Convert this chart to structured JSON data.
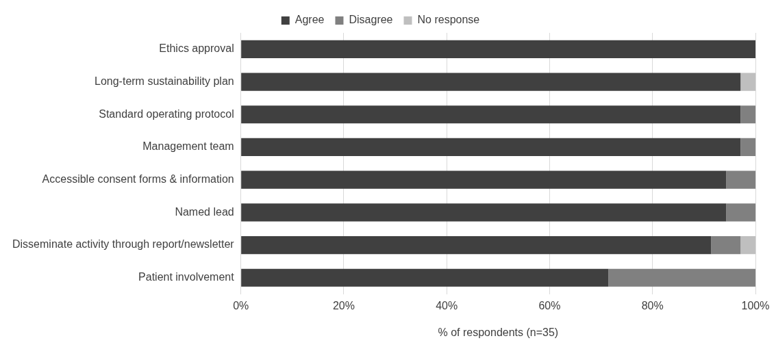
{
  "chart_data": {
    "type": "bar",
    "orientation": "horizontal",
    "stacked": true,
    "categories": [
      "Ethics approval",
      "Long-term sustainability plan",
      "Standard operating protocol",
      "Management team",
      "Accessible consent forms & information",
      "Named lead",
      "Disseminate activity through report/newsletter",
      "Patient involvement"
    ],
    "series": [
      {
        "name": "Agree",
        "color": "#404040",
        "values": [
          100,
          97.1,
          97.1,
          97.1,
          94.3,
          94.3,
          91.4,
          71.4
        ]
      },
      {
        "name": "Disagree",
        "color": "#808080",
        "values": [
          0,
          0,
          2.9,
          2.9,
          5.7,
          5.7,
          5.7,
          28.6
        ]
      },
      {
        "name": "No response",
        "color": "#bfbfbf",
        "values": [
          0,
          2.9,
          0,
          0,
          0,
          0,
          2.9,
          0
        ]
      }
    ],
    "xlim": [
      0,
      100
    ],
    "xticks": [
      {
        "value": 0,
        "label": "0%"
      },
      {
        "value": 20,
        "label": "20%"
      },
      {
        "value": 40,
        "label": "40%"
      },
      {
        "value": 60,
        "label": "60%"
      },
      {
        "value": 80,
        "label": "80%"
      },
      {
        "value": 100,
        "label": "100%"
      }
    ],
    "xlabel": "% of respondents (n=35)",
    "grid": "x",
    "legend": "top"
  }
}
